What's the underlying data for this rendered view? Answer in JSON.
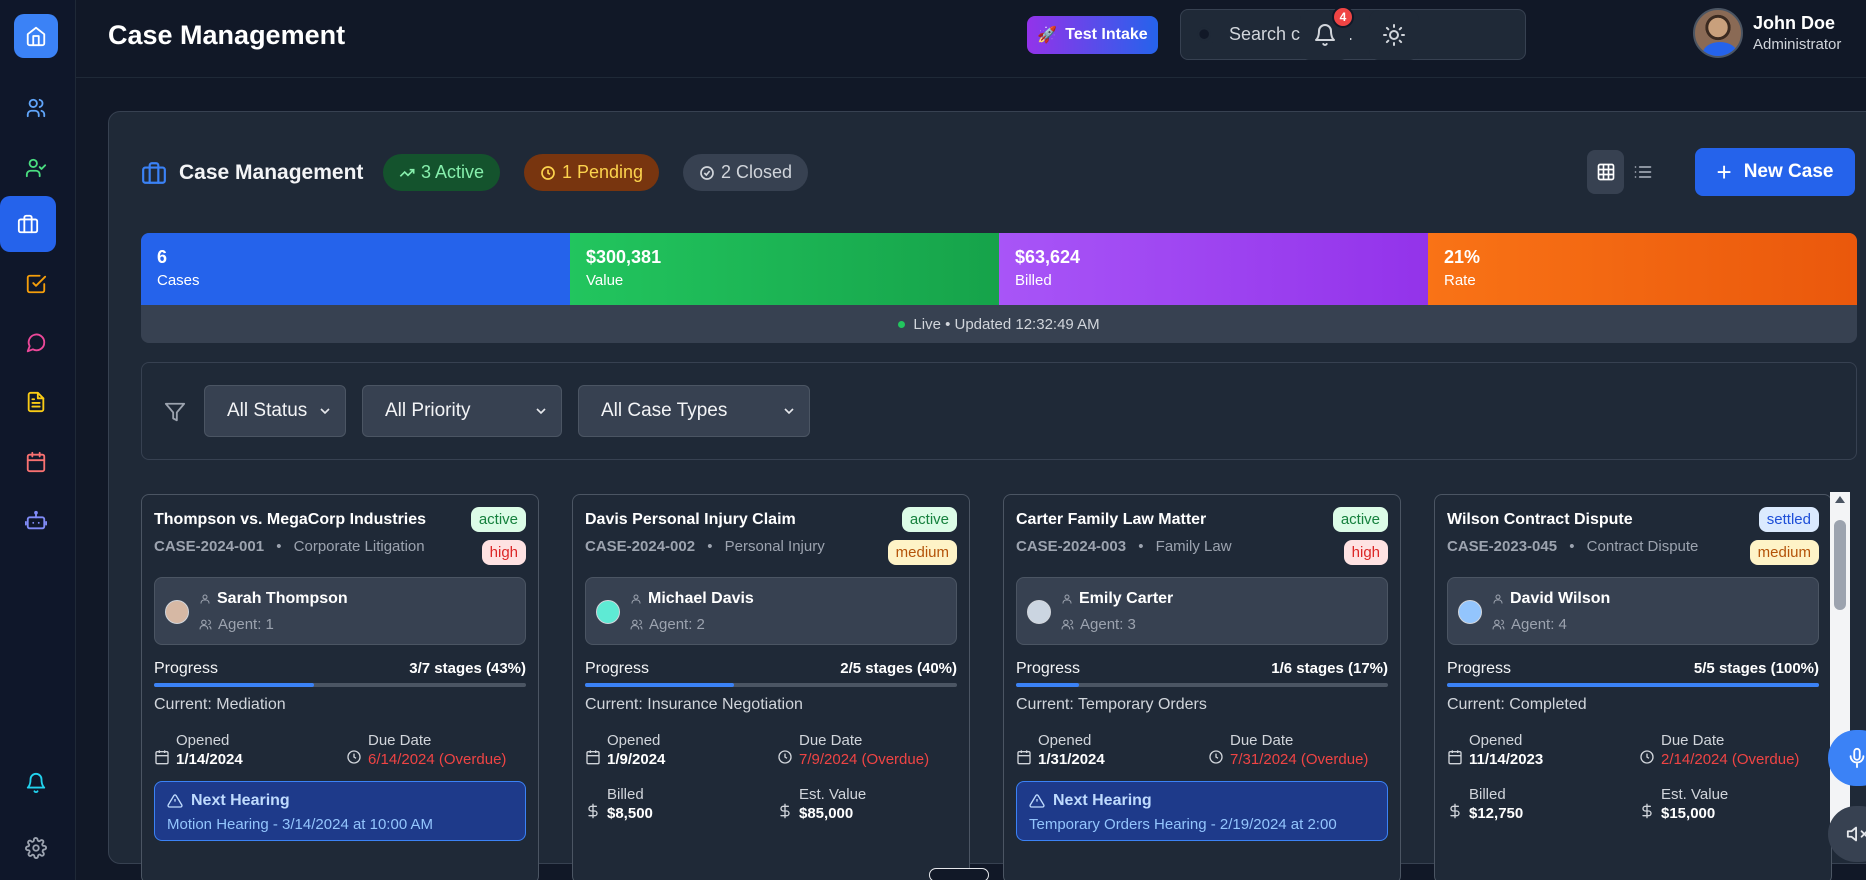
{
  "header": {
    "title": "Case Management",
    "test_intake_label": "Test Intake",
    "search_placeholder": "Search cases...",
    "notification_count": "4",
    "user": {
      "name": "John Doe",
      "role": "Administrator"
    }
  },
  "panel": {
    "title": "Case Management",
    "pills": {
      "active": "3 Active",
      "pending": "1 Pending",
      "closed": "2 Closed"
    },
    "new_case_label": "New Case"
  },
  "stats": [
    {
      "value": "6",
      "label": "Cases",
      "color": "#2563eb"
    },
    {
      "value": "$300,381",
      "label": "Value",
      "color": "#16a34a"
    },
    {
      "value": "$63,624",
      "label": "Billed",
      "color": "#9333ea"
    },
    {
      "value": "21%",
      "label": "Rate",
      "color": "#ea580c"
    }
  ],
  "live_text": "Live • Updated 12:32:49 AM",
  "filters": {
    "status": "All Status",
    "priority": "All Priority",
    "case_type": "All Case Types"
  },
  "cards": [
    {
      "title": "Thompson vs. MegaCorp Industries",
      "case_no": "CASE-2024-001",
      "type": "Corporate Litigation",
      "status": "active",
      "priority": "high",
      "client": "Sarah Thompson",
      "agent": "Agent: 1",
      "progress_label": "Progress",
      "progress_text": "3/7 stages (43%)",
      "progress": 0.43,
      "current": "Current: Mediation",
      "opened_label": "Opened",
      "opened": "1/14/2024",
      "due_label": "Due Date",
      "due": "6/14/2024 (Overdue)",
      "hearing_title": "Next Hearing",
      "hearing_detail": "Motion Hearing - 3/14/2024 at 10:00 AM"
    },
    {
      "title": "Davis Personal Injury Claim",
      "case_no": "CASE-2024-002",
      "type": "Personal Injury",
      "status": "active",
      "priority": "medium",
      "client": "Michael Davis",
      "agent": "Agent: 2",
      "progress_label": "Progress",
      "progress_text": "2/5 stages (40%)",
      "progress": 0.4,
      "current": "Current: Insurance Negotiation",
      "opened_label": "Opened",
      "opened": "1/9/2024",
      "due_label": "Due Date",
      "due": "7/9/2024 (Overdue)",
      "billed_label": "Billed",
      "billed": "$8,500",
      "est_label": "Est. Value",
      "est": "$85,000"
    },
    {
      "title": "Carter Family Law Matter",
      "case_no": "CASE-2024-003",
      "type": "Family Law",
      "status": "active",
      "priority": "high",
      "client": "Emily Carter",
      "agent": "Agent: 3",
      "progress_label": "Progress",
      "progress_text": "1/6 stages (17%)",
      "progress": 0.17,
      "current": "Current: Temporary Orders",
      "opened_label": "Opened",
      "opened": "1/31/2024",
      "due_label": "Due Date",
      "due": "7/31/2024 (Overdue)",
      "hearing_title": "Next Hearing",
      "hearing_detail": "Temporary Orders Hearing - 2/19/2024 at 2:00"
    },
    {
      "title": "Wilson Contract Dispute",
      "case_no": "CASE-2023-045",
      "type": "Contract Dispute",
      "status": "settled",
      "priority": "medium",
      "client": "David Wilson",
      "agent": "Agent: 4",
      "progress_label": "Progress",
      "progress_text": "5/5 stages (100%)",
      "progress": 1.0,
      "current": "Current: Completed",
      "opened_label": "Opened",
      "opened": "11/14/2023",
      "due_label": "Due Date",
      "due": "2/14/2024 (Overdue)",
      "billed_label": "Billed",
      "billed": "$12,750",
      "est_label": "Est. Value",
      "est": "$15,000"
    }
  ]
}
